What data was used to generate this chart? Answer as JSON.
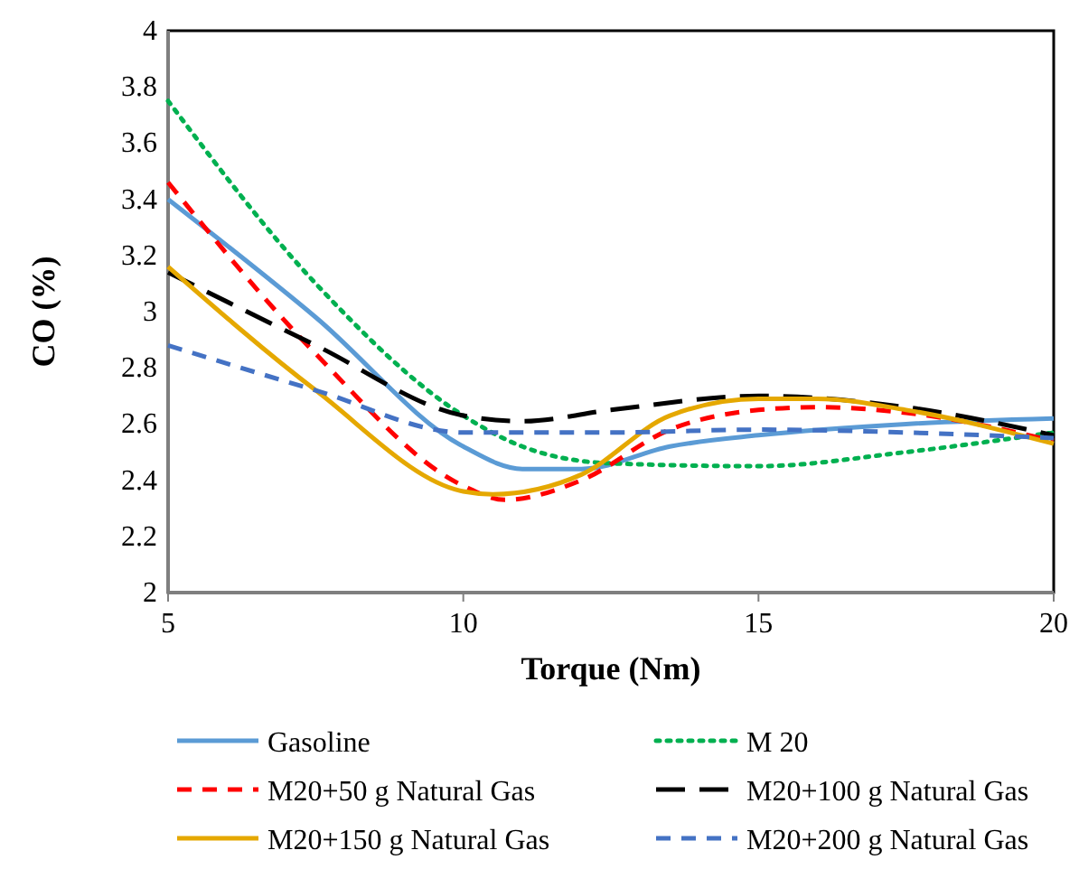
{
  "chart_data": {
    "type": "line",
    "xlabel": "Torque (Nm)",
    "ylabel": "CO (%)",
    "xlim": [
      5,
      20
    ],
    "xticks": [
      5,
      10,
      15,
      20
    ],
    "ylim": [
      2,
      4
    ],
    "yticks": [
      2,
      2.2,
      2.4,
      2.6,
      2.8,
      3,
      3.2,
      3.4,
      3.6,
      3.8,
      4
    ],
    "grid": false,
    "legend": "bottom",
    "series": [
      {
        "name": "Gasoline",
        "color": "#5b9bd5",
        "line_style": "solid",
        "x": [
          5,
          7.5,
          10,
          11,
          12,
          13.5,
          15,
          17.5,
          20
        ],
        "values": [
          3.4,
          2.98,
          2.52,
          2.44,
          2.44,
          2.52,
          2.56,
          2.6,
          2.62
        ]
      },
      {
        "name": "M 20",
        "color": "#00b050",
        "line_style": "dotted",
        "x": [
          5,
          7.5,
          10,
          11,
          12.5,
          15,
          17.5,
          20
        ],
        "values": [
          3.75,
          3.1,
          2.63,
          2.52,
          2.46,
          2.45,
          2.5,
          2.57
        ]
      },
      {
        "name": "M20+50 g Natural Gas",
        "color": "#ff0000",
        "line_style": "dashed",
        "x": [
          5,
          7.5,
          10,
          10.7,
          12,
          13.5,
          15,
          16,
          17.5,
          20
        ],
        "values": [
          3.46,
          2.85,
          2.38,
          2.33,
          2.4,
          2.58,
          2.65,
          2.66,
          2.64,
          2.54
        ]
      },
      {
        "name": "M20+100 g Natural Gas",
        "color": "#000000",
        "line_style": "longdash",
        "x": [
          5,
          7.5,
          10,
          11,
          12.5,
          15,
          17.5,
          20
        ],
        "values": [
          3.14,
          2.88,
          2.63,
          2.61,
          2.65,
          2.7,
          2.66,
          2.56
        ]
      },
      {
        "name": "M20+150 g Natural Gas",
        "color": "#e5a800",
        "line_style": "solid",
        "x": [
          5,
          7.5,
          10,
          10.5,
          12,
          13.5,
          15,
          16,
          17.5,
          20
        ],
        "values": [
          3.16,
          2.72,
          2.36,
          2.35,
          2.42,
          2.63,
          2.69,
          2.69,
          2.65,
          2.53
        ]
      },
      {
        "name": "M20+200 g Natural Gas",
        "color": "#4472c4",
        "line_style": "dashed",
        "x": [
          5,
          7.5,
          10,
          12.5,
          15,
          17.5,
          20
        ],
        "values": [
          2.88,
          2.72,
          2.57,
          2.57,
          2.58,
          2.57,
          2.55
        ]
      }
    ]
  }
}
